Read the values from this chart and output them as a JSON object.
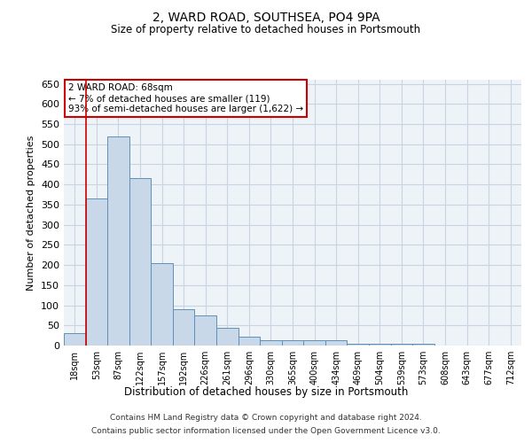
{
  "title": "2, WARD ROAD, SOUTHSEA, PO4 9PA",
  "subtitle": "Size of property relative to detached houses in Portsmouth",
  "xlabel": "Distribution of detached houses by size in Portsmouth",
  "ylabel": "Number of detached properties",
  "footnote1": "Contains HM Land Registry data © Crown copyright and database right 2024.",
  "footnote2": "Contains public sector information licensed under the Open Government Licence v3.0.",
  "annotation_title": "2 WARD ROAD: 68sqm",
  "annotation_line1": "← 7% of detached houses are smaller (119)",
  "annotation_line2": "93% of semi-detached houses are larger (1,622) →",
  "bar_color": "#c8d8e8",
  "bar_edge_color": "#6090b8",
  "grid_color": "#c8d4e0",
  "background_color": "#eef3f8",
  "marker_line_color": "#cc0000",
  "annotation_box_color": "#ffffff",
  "annotation_border_color": "#cc0000",
  "categories": [
    "18sqm",
    "53sqm",
    "87sqm",
    "122sqm",
    "157sqm",
    "192sqm",
    "226sqm",
    "261sqm",
    "296sqm",
    "330sqm",
    "365sqm",
    "400sqm",
    "434sqm",
    "469sqm",
    "504sqm",
    "539sqm",
    "573sqm",
    "608sqm",
    "643sqm",
    "677sqm",
    "712sqm"
  ],
  "values": [
    30,
    365,
    520,
    415,
    205,
    90,
    75,
    45,
    22,
    13,
    13,
    13,
    13,
    4,
    4,
    4,
    4,
    1,
    1,
    1,
    1
  ],
  "marker_bin_index": 1,
  "ylim": [
    0,
    660
  ],
  "yticks": [
    0,
    50,
    100,
    150,
    200,
    250,
    300,
    350,
    400,
    450,
    500,
    550,
    600,
    650
  ]
}
